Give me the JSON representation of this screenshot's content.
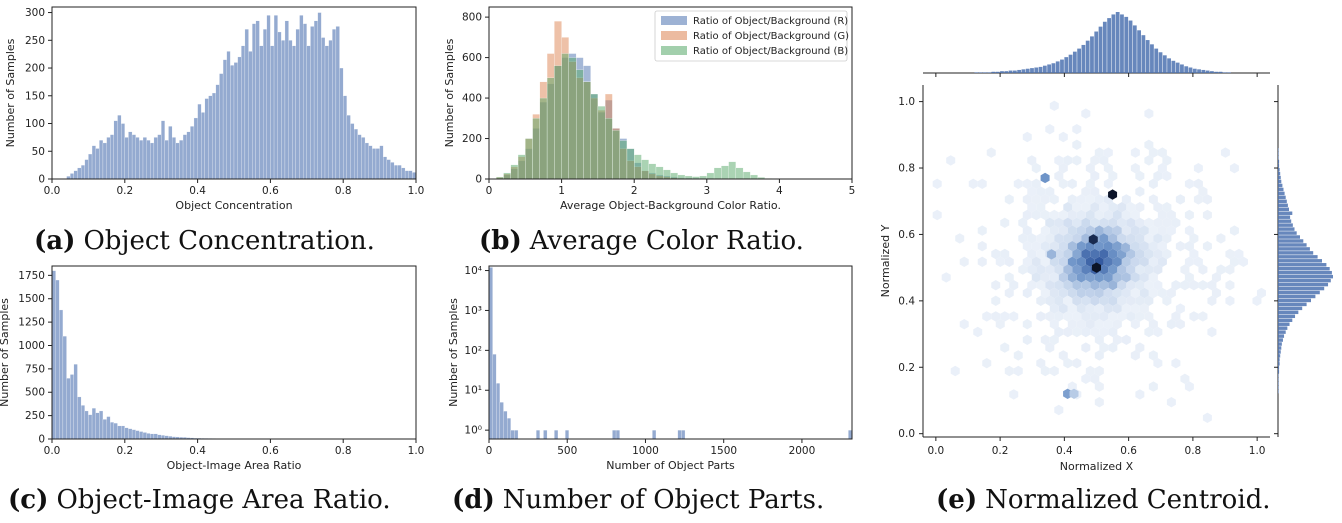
{
  "colors": {
    "blue": "#4c72b0",
    "orange": "#dd8452",
    "green": "#55a868",
    "axis": "#222222"
  },
  "captions": {
    "a": {
      "label": "(a)",
      "text": "Object Concentration."
    },
    "b": {
      "label": "(b)",
      "text": "Average Color Ratio."
    },
    "c": {
      "label": "(c)",
      "text": "Object-Image Area Ratio."
    },
    "d": {
      "label": "(d)",
      "text": "Number of Object Parts."
    },
    "e": {
      "label": "(e)",
      "text": "Normalized Centroid."
    }
  },
  "chart_data": [
    {
      "id": "a",
      "type": "bar",
      "xlabel": "Object Concentration",
      "ylabel": "Number of Samples",
      "xlim": [
        0,
        1.0
      ],
      "ylim": [
        0,
        310
      ],
      "xticks": [
        0.0,
        0.2,
        0.4,
        0.6,
        0.8,
        1.0
      ],
      "xtick_labels": [
        "0.0",
        "0.2",
        "0.4",
        "0.6",
        "0.8",
        "1.0"
      ],
      "yticks": [
        0,
        50,
        100,
        150,
        200,
        250,
        300
      ],
      "ytick_labels": [
        "0",
        "50",
        "100",
        "150",
        "200",
        "250",
        "300"
      ],
      "bin_start": 0.0,
      "bin_width": 0.01,
      "series": [
        {
          "values": [
            0,
            0,
            0,
            0,
            5,
            10,
            15,
            20,
            25,
            35,
            45,
            60,
            55,
            70,
            65,
            75,
            80,
            105,
            115,
            100,
            75,
            85,
            80,
            75,
            70,
            75,
            70,
            65,
            75,
            80,
            105,
            70,
            95,
            75,
            65,
            70,
            80,
            85,
            95,
            110,
            135,
            120,
            145,
            150,
            155,
            170,
            190,
            215,
            230,
            205,
            210,
            220,
            240,
            270,
            230,
            280,
            285,
            240,
            270,
            295,
            240,
            295,
            265,
            250,
            285,
            250,
            240,
            270,
            295,
            280,
            240,
            275,
            285,
            300,
            255,
            240,
            250,
            270,
            275,
            200,
            150,
            115,
            100,
            90,
            80,
            75,
            65,
            60,
            55,
            55,
            60,
            40,
            35,
            30,
            25,
            25,
            20,
            15,
            15,
            12
          ]
        }
      ]
    },
    {
      "id": "b",
      "type": "bar",
      "xlabel": "Average Object-Background Color Ratio.",
      "ylabel": "Number of Samples",
      "xlim": [
        0,
        5
      ],
      "ylim": [
        0,
        850
      ],
      "xticks": [
        0,
        1,
        2,
        3,
        4,
        5
      ],
      "xtick_labels": [
        "0",
        "1",
        "2",
        "3",
        "4",
        "5"
      ],
      "yticks": [
        0,
        200,
        400,
        600,
        800
      ],
      "ytick_labels": [
        "0",
        "200",
        "400",
        "600",
        "800"
      ],
      "bin_start": 0.1,
      "bin_width": 0.1,
      "legend_position": "top-right",
      "series": [
        {
          "name": "Ratio of Object/Background (R)",
          "values": [
            5,
            20,
            50,
            90,
            150,
            250,
            380,
            470,
            560,
            600,
            620,
            600,
            560,
            420,
            330,
            390,
            250,
            200,
            150,
            80,
            40,
            30,
            20,
            15,
            10,
            6,
            5,
            4,
            3,
            3,
            2,
            2,
            2,
            1,
            1,
            1,
            1,
            0,
            0,
            0,
            0,
            0,
            0,
            0,
            0,
            0,
            0,
            0,
            0
          ]
        },
        {
          "name": "Ratio of Object/Background (G)",
          "values": [
            8,
            25,
            60,
            110,
            200,
            320,
            480,
            620,
            780,
            700,
            580,
            500,
            480,
            400,
            340,
            420,
            250,
            150,
            90,
            60,
            40,
            25,
            15,
            10,
            6,
            4,
            3,
            2,
            2,
            1,
            1,
            1,
            0,
            0,
            0,
            0,
            0,
            0,
            0,
            0,
            0,
            0,
            0,
            0,
            0,
            0,
            0,
            0,
            0
          ]
        },
        {
          "name": "Ratio of Object/Background (B)",
          "values": [
            10,
            30,
            70,
            120,
            200,
            300,
            400,
            500,
            560,
            620,
            600,
            540,
            480,
            420,
            360,
            300,
            240,
            190,
            150,
            120,
            95,
            75,
            60,
            45,
            30,
            20,
            15,
            12,
            15,
            30,
            55,
            65,
            85,
            55,
            35,
            20,
            8,
            3,
            2,
            1,
            1,
            0,
            0,
            0,
            0,
            0,
            0,
            0,
            0
          ]
        }
      ]
    },
    {
      "id": "c",
      "type": "bar",
      "xlabel": "Object-Image Area Ratio",
      "ylabel": "Number of Samples",
      "xlim": [
        0,
        1.0
      ],
      "ylim": [
        0,
        1850
      ],
      "xticks": [
        0.0,
        0.2,
        0.4,
        0.6,
        0.8,
        1.0
      ],
      "xtick_labels": [
        "0.0",
        "0.2",
        "0.4",
        "0.6",
        "0.8",
        "1.0"
      ],
      "yticks": [
        0,
        250,
        500,
        750,
        1000,
        1250,
        1500,
        1750
      ],
      "ytick_labels": [
        "0",
        "250",
        "500",
        "750",
        "1000",
        "1250",
        "1500",
        "1750"
      ],
      "bin_start": 0.0,
      "bin_width": 0.01,
      "series": [
        {
          "values": [
            1800,
            1700,
            1380,
            1100,
            650,
            690,
            800,
            450,
            360,
            300,
            260,
            330,
            280,
            300,
            210,
            240,
            180,
            170,
            140,
            140,
            120,
            110,
            100,
            90,
            80,
            70,
            60,
            55,
            55,
            45,
            40,
            35,
            30,
            25,
            22,
            20,
            18,
            15,
            12,
            10,
            10,
            9,
            8,
            7,
            6,
            5,
            5,
            4,
            4,
            3,
            3,
            3,
            2,
            2,
            2,
            2,
            1,
            1,
            1,
            1,
            1,
            1,
            1,
            1,
            1,
            1,
            1,
            1,
            1,
            1,
            1,
            1,
            1,
            1,
            1,
            1,
            1,
            1,
            1,
            1,
            1,
            0,
            0,
            0,
            0,
            0,
            0,
            0,
            0,
            0,
            0,
            0,
            0,
            0,
            0,
            0,
            0,
            0,
            0,
            0
          ]
        }
      ]
    },
    {
      "id": "d",
      "type": "bar",
      "xlabel": "Number of Object Parts",
      "ylabel": "Number of Samples",
      "yscale": "log",
      "xlim": [
        0,
        2320
      ],
      "ylim": [
        0.6,
        13000
      ],
      "xticks": [
        0,
        500,
        1000,
        1500,
        2000
      ],
      "xtick_labels": [
        "0",
        "500",
        "1000",
        "1500",
        "2000"
      ],
      "yticks": [
        1,
        10,
        100,
        1000,
        10000
      ],
      "ytick_labels": [
        "10⁰",
        "10¹",
        "10²",
        "10³",
        "10⁴"
      ],
      "bin_start": 0,
      "bin_width": 23.2,
      "series": [
        {
          "values": [
            12000,
            80,
            15,
            5,
            3,
            2,
            1,
            1,
            0,
            0,
            0,
            0,
            0,
            1,
            0,
            1,
            0,
            0,
            1,
            0,
            0,
            1,
            0,
            0,
            0,
            0,
            0,
            0,
            0,
            0,
            0,
            0,
            0,
            0,
            1,
            1,
            0,
            0,
            0,
            0,
            0,
            0,
            0,
            0,
            0,
            1,
            0,
            0,
            0,
            0,
            0,
            0,
            1,
            1,
            0,
            0,
            0,
            0,
            0,
            0,
            0,
            0,
            0,
            0,
            0,
            0,
            0,
            0,
            0,
            0,
            0,
            0,
            0,
            0,
            0,
            0,
            0,
            0,
            0,
            0,
            0,
            0,
            0,
            0,
            0,
            0,
            0,
            0,
            0,
            0,
            0,
            0,
            0,
            0,
            0,
            0,
            0,
            0,
            0,
            1
          ]
        }
      ]
    },
    {
      "id": "e",
      "type": "heatmap",
      "xlabel": "Normalized X",
      "ylabel": "Normalized Y",
      "xlim": [
        -0.04,
        1.04
      ],
      "ylim": [
        -0.01,
        1.05
      ],
      "xticks": [
        0.0,
        0.2,
        0.4,
        0.6,
        0.8,
        1.0
      ],
      "xtick_labels": [
        "0.0",
        "0.2",
        "0.4",
        "0.6",
        "0.8",
        "1.0"
      ],
      "yticks": [
        0.0,
        0.2,
        0.4,
        0.6,
        0.8,
        1.0
      ],
      "ytick_labels": [
        "0.0",
        "0.2",
        "0.4",
        "0.6",
        "0.8",
        "1.0"
      ],
      "density_center": [
        0.5,
        0.52
      ],
      "density_sigma": [
        0.07,
        0.065
      ],
      "hotspots": [
        {
          "x": 0.5,
          "y": 0.5,
          "level": 1.0
        },
        {
          "x": 0.49,
          "y": 0.585,
          "level": 0.95
        },
        {
          "x": 0.55,
          "y": 0.72,
          "level": 1.0
        },
        {
          "x": 0.34,
          "y": 0.77,
          "level": 0.6
        },
        {
          "x": 0.41,
          "y": 0.12,
          "level": 0.55
        },
        {
          "x": 0.43,
          "y": 0.12,
          "level": 0.35
        },
        {
          "x": 0.36,
          "y": 0.54,
          "level": 0.45
        },
        {
          "x": 0.59,
          "y": 0.56,
          "level": 0.45
        }
      ],
      "marginal_x": [
        1,
        1,
        1,
        1,
        2,
        2,
        3,
        3,
        4,
        4,
        5,
        6,
        7,
        8,
        9,
        10,
        12,
        14,
        16,
        19,
        22,
        26,
        30,
        35,
        40,
        46,
        53,
        60,
        68,
        76,
        84,
        90,
        96,
        100,
        96,
        92,
        86,
        78,
        70,
        62,
        54,
        47,
        40,
        34,
        29,
        24,
        20,
        17,
        14,
        11,
        9,
        7,
        6,
        5,
        4,
        3,
        2,
        2,
        1,
        1
      ],
      "marginal_y": [
        1,
        1,
        1,
        1,
        1,
        2,
        2,
        3,
        3,
        4,
        5,
        6,
        7,
        9,
        11,
        14,
        17,
        21,
        26,
        31,
        37,
        44,
        52,
        60,
        68,
        76,
        84,
        91,
        96,
        100,
        98,
        94,
        88,
        80,
        72,
        64,
        58,
        52,
        46,
        40,
        34,
        30,
        27,
        24,
        22,
        26,
        20,
        18,
        16,
        14,
        12,
        10,
        8,
        6,
        5,
        4,
        3,
        2,
        2,
        1,
        1,
        1
      ]
    }
  ]
}
